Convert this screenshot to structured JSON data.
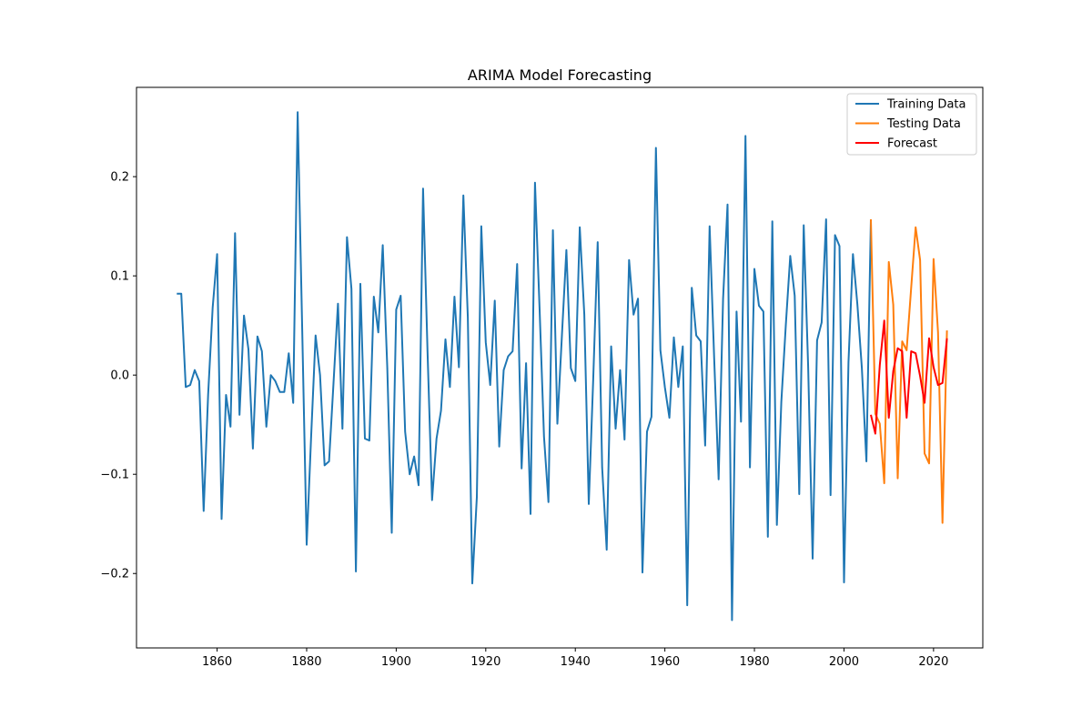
{
  "chart_data": {
    "type": "line",
    "title": "ARIMA Model Forecasting",
    "xlabel": "",
    "ylabel": "",
    "xlim": [
      1842,
      2031
    ],
    "ylim": [
      -0.275,
      0.29
    ],
    "x_ticks": [
      1860,
      1880,
      1900,
      1920,
      1940,
      1960,
      1980,
      2000,
      2020
    ],
    "y_ticks": [
      -0.2,
      -0.1,
      0.0,
      0.1,
      0.2
    ],
    "y_tick_labels": [
      "−0.2",
      "−0.1",
      "0.0",
      "0.1",
      "0.2"
    ],
    "grid": false,
    "legend_position": "top-right",
    "series": [
      {
        "name": "Training Data",
        "color": "#1f77b4",
        "x": [
          1851,
          1852,
          1853,
          1854,
          1855,
          1856,
          1857,
          1858,
          1859,
          1860,
          1861,
          1862,
          1863,
          1864,
          1865,
          1866,
          1867,
          1868,
          1869,
          1870,
          1871,
          1872,
          1873,
          1874,
          1875,
          1876,
          1877,
          1878,
          1879,
          1880,
          1881,
          1882,
          1883,
          1884,
          1885,
          1886,
          1887,
          1888,
          1889,
          1890,
          1891,
          1892,
          1893,
          1894,
          1895,
          1896,
          1897,
          1898,
          1899,
          1900,
          1901,
          1902,
          1903,
          1904,
          1905,
          1906,
          1907,
          1908,
          1909,
          1910,
          1911,
          1912,
          1913,
          1914,
          1915,
          1916,
          1917,
          1918,
          1919,
          1920,
          1921,
          1922,
          1923,
          1924,
          1925,
          1926,
          1927,
          1928,
          1929,
          1930,
          1931,
          1932,
          1933,
          1934,
          1935,
          1936,
          1937,
          1938,
          1939,
          1940,
          1941,
          1942,
          1943,
          1944,
          1945,
          1946,
          1947,
          1948,
          1949,
          1950,
          1951,
          1952,
          1953,
          1954,
          1955,
          1956,
          1957,
          1958,
          1959,
          1960,
          1961,
          1962,
          1963,
          1964,
          1965,
          1966,
          1967,
          1968,
          1969,
          1970,
          1971,
          1972,
          1973,
          1974,
          1975,
          1976,
          1977,
          1978,
          1979,
          1980,
          1981,
          1982,
          1983,
          1984,
          1985,
          1986,
          1987,
          1988,
          1989,
          1990,
          1991,
          1992,
          1993,
          1994,
          1995,
          1996,
          1997,
          1998,
          1999,
          2000,
          2001,
          2002,
          2003,
          2004,
          2005,
          2006
        ],
        "values": [
          0.082,
          0.082,
          -0.012,
          -0.01,
          0.005,
          -0.006,
          -0.137,
          -0.02,
          0.068,
          0.122,
          -0.145,
          -0.02,
          -0.052,
          0.143,
          -0.04,
          0.06,
          0.026,
          -0.074,
          0.039,
          0.024,
          -0.052,
          -0.0,
          -0.006,
          -0.017,
          -0.017,
          0.022,
          -0.028,
          0.265,
          0.046,
          -0.171,
          -0.062,
          0.04,
          -0.0,
          -0.091,
          -0.087,
          -0.008,
          0.072,
          -0.054,
          0.139,
          0.087,
          -0.198,
          0.092,
          -0.064,
          -0.066,
          0.079,
          0.043,
          0.131,
          0.007,
          -0.159,
          0.066,
          0.08,
          -0.057,
          -0.1,
          -0.082,
          -0.111,
          0.188,
          0.024,
          -0.126,
          -0.064,
          -0.036,
          0.036,
          -0.012,
          0.079,
          0.008,
          0.181,
          0.058,
          -0.21,
          -0.123,
          0.15,
          0.033,
          -0.01,
          0.075,
          -0.072,
          0.005,
          0.019,
          0.024,
          0.112,
          -0.094,
          0.012,
          -0.14,
          0.194,
          0.068,
          -0.062,
          -0.128,
          0.146,
          -0.049,
          0.04,
          0.126,
          0.007,
          -0.006,
          0.149,
          0.061,
          -0.13,
          -0.004,
          0.134,
          -0.093,
          -0.176,
          0.029,
          -0.054,
          0.005,
          -0.065,
          0.116,
          0.061,
          0.077,
          -0.199,
          -0.057,
          -0.042,
          0.229,
          0.025,
          -0.012,
          -0.043,
          0.038,
          -0.012,
          0.029,
          -0.232,
          0.088,
          0.04,
          0.034,
          -0.071,
          0.15,
          0.017,
          -0.105,
          0.077,
          0.172,
          -0.247,
          0.064,
          -0.047,
          0.241,
          -0.093,
          0.107,
          0.07,
          0.064,
          -0.163,
          0.155,
          -0.151,
          -0.027,
          0.05,
          0.12,
          0.08,
          -0.12,
          0.151,
          0.008,
          -0.185,
          0.035,
          0.053,
          0.157,
          -0.121,
          0.141,
          0.13,
          -0.209,
          0.013,
          0.122,
          0.071,
          0.007,
          -0.087,
          0.157
        ]
      },
      {
        "name": "Testing Data",
        "color": "#ff7f0e",
        "x": [
          2006,
          2007,
          2008,
          2009,
          2010,
          2011,
          2012,
          2013,
          2014,
          2015,
          2016,
          2017,
          2018,
          2019,
          2020,
          2021,
          2022,
          2023
        ],
        "values": [
          0.157,
          -0.039,
          -0.049,
          -0.109,
          0.114,
          0.071,
          -0.104,
          0.034,
          0.025,
          0.088,
          0.149,
          0.116,
          -0.079,
          -0.089,
          0.117,
          0.043,
          -0.149,
          0.045
        ]
      },
      {
        "name": "Forecast",
        "color": "#ff0000",
        "x": [
          2006,
          2007,
          2008,
          2009,
          2010,
          2011,
          2012,
          2013,
          2014,
          2015,
          2016,
          2017,
          2018,
          2019,
          2020,
          2021,
          2022,
          2023
        ],
        "values": [
          -0.04,
          -0.059,
          0.01,
          0.055,
          -0.043,
          0.004,
          0.027,
          0.024,
          -0.043,
          0.024,
          0.022,
          -0.001,
          -0.028,
          0.037,
          0.008,
          -0.01,
          -0.008,
          0.037
        ]
      }
    ]
  }
}
